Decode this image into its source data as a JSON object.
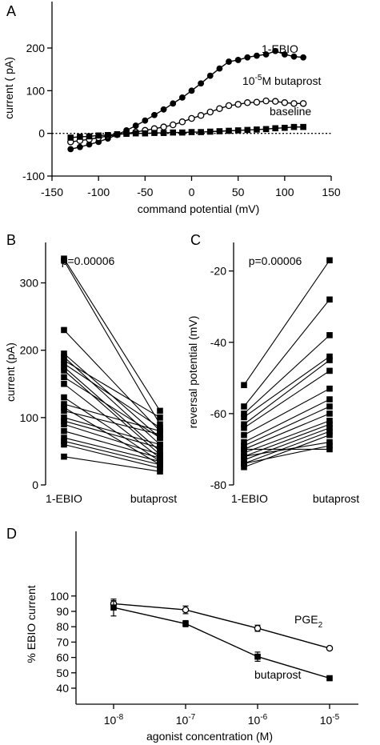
{
  "panels": [
    {
      "id": "A",
      "label": "A",
      "xlabel": "command potential (mV)",
      "ylabel": "current ( pA)",
      "xticks": [
        -150,
        -100,
        -50,
        0,
        50,
        100,
        150
      ],
      "yticks": [
        -100,
        0,
        100,
        200
      ],
      "annotations": [
        {
          "text": "1-EBIO",
          "series": "1-EBIO"
        },
        {
          "text": "10",
          "sup": "-5",
          "rest": "M butaprost",
          "series": "butaprost"
        },
        {
          "text": "baseline",
          "series": "baseline"
        }
      ]
    },
    {
      "id": "B",
      "label": "B",
      "ylabel": "current (pA)",
      "pvalue": "p=0.00006",
      "categories": [
        "1-EBIO",
        "butaprost"
      ],
      "yticks": [
        0,
        100,
        200,
        300
      ]
    },
    {
      "id": "C",
      "label": "C",
      "ylabel": "reversal potential (mV)",
      "pvalue": "p=0.00006",
      "categories": [
        "1-EBIO",
        "butaprost"
      ],
      "yticks": [
        -20,
        -40,
        -60,
        -80
      ]
    },
    {
      "id": "D",
      "label": "D",
      "xlabel": "agonist concentration (M)",
      "ylabel": "% EBIO current",
      "xticks": [
        {
          "base": "10",
          "exp": "-8"
        },
        {
          "base": "10",
          "exp": "-7"
        },
        {
          "base": "10",
          "exp": "-6"
        },
        {
          "base": "10",
          "exp": "-5"
        }
      ],
      "yticks": [
        40,
        50,
        60,
        70,
        80,
        90,
        100
      ],
      "annotations": [
        {
          "text": "PGE",
          "sub": "2",
          "series": "PGE2"
        },
        {
          "text": "butaprost",
          "series": "butaprost"
        }
      ]
    }
  ],
  "chart_data": [
    {
      "panel": "A",
      "type": "line",
      "xlabel": "command potential (mV)",
      "ylabel": "current ( pA)",
      "xlim": [
        -150,
        150
      ],
      "ylim": [
        -100,
        220
      ],
      "reference_line": {
        "y": 0,
        "style": "dotted"
      },
      "series": [
        {
          "name": "1-EBIO",
          "marker": "filled-circle",
          "x": [
            -130,
            -120,
            -110,
            -100,
            -90,
            -80,
            -70,
            -60,
            -50,
            -40,
            -30,
            -20,
            -10,
            0,
            10,
            20,
            30,
            40,
            50,
            60,
            70,
            80,
            90,
            100,
            110,
            120
          ],
          "y": [
            -37,
            -32,
            -26,
            -20,
            -12,
            -3,
            7,
            18,
            30,
            43,
            56,
            70,
            84,
            100,
            117,
            135,
            152,
            168,
            172,
            178,
            182,
            185,
            193,
            185,
            180,
            178
          ]
        },
        {
          "name": "butaprost",
          "marker": "open-circle",
          "x": [
            -130,
            -120,
            -110,
            -100,
            -90,
            -80,
            -70,
            -60,
            -50,
            -40,
            -30,
            -20,
            -10,
            0,
            10,
            20,
            30,
            40,
            50,
            60,
            70,
            80,
            90,
            100,
            110,
            120
          ],
          "y": [
            -20,
            -17,
            -14,
            -10,
            -6,
            -3,
            0,
            3,
            7,
            11,
            15,
            20,
            27,
            35,
            42,
            50,
            58,
            65,
            68,
            72,
            73,
            76,
            75,
            72,
            70,
            70
          ]
        },
        {
          "name": "baseline",
          "marker": "filled-square",
          "x": [
            -130,
            -120,
            -110,
            -100,
            -90,
            -80,
            -70,
            -60,
            -50,
            -40,
            -30,
            -20,
            -10,
            0,
            10,
            20,
            30,
            40,
            50,
            60,
            70,
            80,
            90,
            100,
            110,
            120
          ],
          "y": [
            -10,
            -8,
            -7,
            -5,
            -4,
            -2,
            -1,
            0,
            0,
            1,
            1,
            2,
            2,
            3,
            3,
            4,
            5,
            6,
            7,
            8,
            9,
            10,
            12,
            13,
            15,
            15
          ]
        }
      ]
    },
    {
      "panel": "B",
      "type": "scatter",
      "ylabel": "current (pA)",
      "categories": [
        "1-EBIO",
        "butaprost"
      ],
      "ylim": [
        0,
        360
      ],
      "pairs": [
        [
          336,
          110
        ],
        [
          333,
          90
        ],
        [
          230,
          80
        ],
        [
          195,
          70
        ],
        [
          190,
          60
        ],
        [
          185,
          100
        ],
        [
          180,
          85
        ],
        [
          175,
          50
        ],
        [
          170,
          45
        ],
        [
          160,
          70
        ],
        [
          150,
          40
        ],
        [
          130,
          35
        ],
        [
          120,
          80
        ],
        [
          115,
          30
        ],
        [
          110,
          75
        ],
        [
          100,
          60
        ],
        [
          95,
          55
        ],
        [
          90,
          45
        ],
        [
          80,
          40
        ],
        [
          70,
          35
        ],
        [
          65,
          30
        ],
        [
          60,
          25
        ],
        [
          42,
          20
        ]
      ]
    },
    {
      "panel": "C",
      "type": "scatter",
      "ylabel": "reversal potential (mV)",
      "categories": [
        "1-EBIO",
        "butaprost"
      ],
      "ylim": [
        -80,
        -12
      ],
      "pairs": [
        [
          -52,
          -17
        ],
        [
          -58,
          -28
        ],
        [
          -60,
          -38
        ],
        [
          -61,
          -44
        ],
        [
          -63,
          -45
        ],
        [
          -64,
          -48
        ],
        [
          -66,
          -53
        ],
        [
          -68,
          -56
        ],
        [
          -69,
          -58
        ],
        [
          -70,
          -60
        ],
        [
          -71,
          -62
        ],
        [
          -72,
          -63
        ],
        [
          -73,
          -64
        ],
        [
          -74,
          -65
        ],
        [
          -75,
          -66
        ],
        [
          -72,
          -68
        ],
        [
          -70,
          -70
        ],
        [
          -74,
          -69
        ]
      ]
    },
    {
      "panel": "D",
      "type": "line",
      "xlabel": "agonist concentration (M)",
      "ylabel": "% EBIO current",
      "xscale": "log",
      "xlim": [
        5e-09,
        2e-05
      ],
      "ylim": [
        35,
        103
      ],
      "series": [
        {
          "name": "PGE2",
          "marker": "open-circle",
          "x": [
            1e-08,
            1e-07,
            1e-06,
            1e-05
          ],
          "y": [
            95,
            91,
            79,
            66
          ],
          "err": [
            2,
            2.5,
            2,
            1
          ]
        },
        {
          "name": "butaprost",
          "marker": "filled-square",
          "x": [
            1e-08,
            1e-07,
            1e-06,
            1e-05
          ],
          "y": [
            92.5,
            82,
            60.5,
            46.5
          ],
          "err": [
            5.5,
            2,
            3,
            1.5
          ]
        }
      ]
    }
  ]
}
